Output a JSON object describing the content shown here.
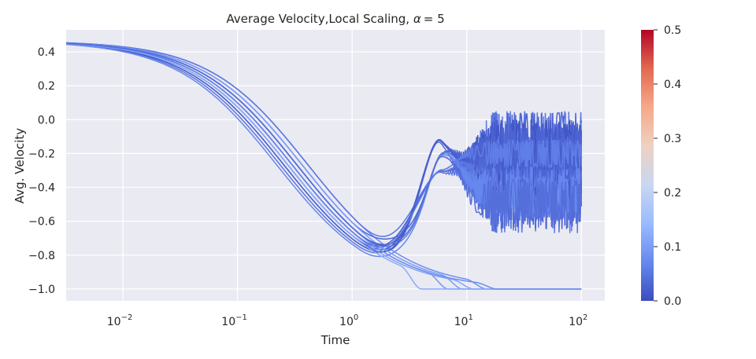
{
  "chart_data": {
    "type": "line",
    "title": "Average Velocity,Local Scaling, α = 5",
    "title_parts": {
      "text": "Average Velocity,Local Scaling, ",
      "alpha_symbol": "α",
      "equals": "= 5"
    },
    "xlabel": "Time",
    "ylabel": "Avg. Velocity",
    "x_scale": "log",
    "xlim": [
      0.0032,
      160
    ],
    "ylim": [
      -1.07,
      0.53
    ],
    "x_ticks": [
      {
        "value": 0.01,
        "base": "10",
        "exp": "−2"
      },
      {
        "value": 0.1,
        "base": "10",
        "exp": "−1"
      },
      {
        "value": 1,
        "base": "10",
        "exp": "0"
      },
      {
        "value": 10,
        "base": "10",
        "exp": "1"
      },
      {
        "value": 100,
        "base": "10",
        "exp": "2"
      }
    ],
    "y_ticks": [
      {
        "value": 0.4,
        "label": "0.4"
      },
      {
        "value": 0.2,
        "label": "0.2"
      },
      {
        "value": 0.0,
        "label": "0.0"
      },
      {
        "value": -0.2,
        "label": "−0.2"
      },
      {
        "value": -0.4,
        "label": "−0.4"
      },
      {
        "value": -0.6,
        "label": "−0.6"
      },
      {
        "value": -0.8,
        "label": "−0.8"
      },
      {
        "value": -1.0,
        "label": "−1.0"
      }
    ],
    "grid": true,
    "background": "#eaeaf2",
    "colormap": "coolwarm",
    "colorbar": {
      "range": [
        0.0,
        0.5
      ],
      "ticks": [
        {
          "value": 0.0,
          "label": "0.0"
        },
        {
          "value": 0.1,
          "label": "0.1"
        },
        {
          "value": 0.2,
          "label": "0.2"
        },
        {
          "value": 0.3,
          "label": "0.3"
        },
        {
          "value": 0.4,
          "label": "0.4"
        },
        {
          "value": 0.5,
          "label": "0.5"
        }
      ],
      "stops": [
        "#3b4cc0",
        "#6788ee",
        "#9abbff",
        "#c9d7f0",
        "#edd1c2",
        "#f7a889",
        "#e26952",
        "#b40426"
      ]
    },
    "common_start": {
      "x0": 0.0032,
      "y0": 0.465,
      "t_decay": 0.3
    },
    "series": [
      {
        "value": 0.08,
        "p0": 0.4,
        "cross": 5.0,
        "drop": 1,
        "fall": 13,
        "ymin": -0.4,
        "ymax": -0.3,
        "osc": 0
      },
      {
        "value": 0.05,
        "p0": 0.7,
        "cross": 1.0,
        "drop": 0,
        "fall": 0,
        "ymin": -0.67,
        "ymax": 0.05,
        "osc": 1
      },
      {
        "value": 0.03,
        "p0": 0.45,
        "cross": 0.9,
        "drop": 0,
        "fall": 0,
        "ymin": -0.65,
        "ymax": 0.04,
        "osc": 1
      },
      {
        "value": 0.04,
        "p0": 0.6,
        "cross": 1.1,
        "drop": 0,
        "fall": 0,
        "ymin": -0.62,
        "ymax": -0.05,
        "osc": 1
      },
      {
        "value": 0.02,
        "p0": 0.55,
        "cross": 1.0,
        "drop": 0,
        "fall": 0,
        "ymin": -0.5,
        "ymax": -0.02,
        "osc": 1
      },
      {
        "value": 0.06,
        "p0": 0.5,
        "cross": 1.2,
        "drop": 0,
        "fall": 0,
        "ymin": -0.58,
        "ymax": -0.12,
        "osc": 1
      },
      {
        "value": 0.01,
        "p0": 0.65,
        "cross": 0.95,
        "drop": 0,
        "fall": 0,
        "ymin": -0.45,
        "ymax": 0.0,
        "osc": 1
      },
      {
        "value": 0.05,
        "p0": 0.4,
        "cross": 1.05,
        "drop": 0,
        "fall": 0,
        "ymin": -0.4,
        "ymax": -0.1,
        "osc": 1
      },
      {
        "value": 0.07,
        "p0": 0.75,
        "cross": 1.15,
        "drop": 0,
        "fall": 0,
        "ymin": -0.55,
        "ymax": -0.25,
        "osc": 1
      },
      {
        "value": 0.03,
        "p0": 0.6,
        "cross": 0.9,
        "drop": 0,
        "fall": 0,
        "ymin": -0.35,
        "ymax": -0.05,
        "osc": 1
      },
      {
        "value": 0.09,
        "p0": 0.5,
        "cross": 1.0,
        "drop": 1,
        "fall": 6,
        "ymin": 0,
        "ymax": 0,
        "osc": 0
      },
      {
        "value": 0.1,
        "p0": 0.45,
        "cross": 1.1,
        "drop": 1,
        "fall": 8,
        "ymin": 0,
        "ymax": 0,
        "osc": 0
      },
      {
        "value": 0.11,
        "p0": 0.55,
        "cross": 1.2,
        "drop": 1,
        "fall": 10,
        "ymin": 0,
        "ymax": 0,
        "osc": 0
      },
      {
        "value": 0.12,
        "p0": 0.6,
        "cross": 1.0,
        "drop": 1,
        "fall": 3.5,
        "ymin": 0,
        "ymax": 0,
        "osc": 0
      },
      {
        "value": 0.08,
        "p0": 0.5,
        "cross": 1.1,
        "drop": 1,
        "fall": 16,
        "ymin": 0,
        "ymax": 0,
        "osc": 0
      },
      {
        "value": 0.02,
        "p0": 0.5,
        "cross": 1.0,
        "drop": 0,
        "fall": 0,
        "ymin": -0.3,
        "ymax": -0.15,
        "osc": 1
      },
      {
        "value": 0.06,
        "p0": 0.55,
        "cross": 1.1,
        "drop": 0,
        "fall": 0,
        "ymin": -0.28,
        "ymax": -0.12,
        "osc": 1
      },
      {
        "value": 0.04,
        "p0": 0.5,
        "cross": 1.05,
        "drop": 0,
        "fall": 0,
        "ymin": -0.6,
        "ymax": -0.35,
        "osc": 1
      }
    ]
  }
}
